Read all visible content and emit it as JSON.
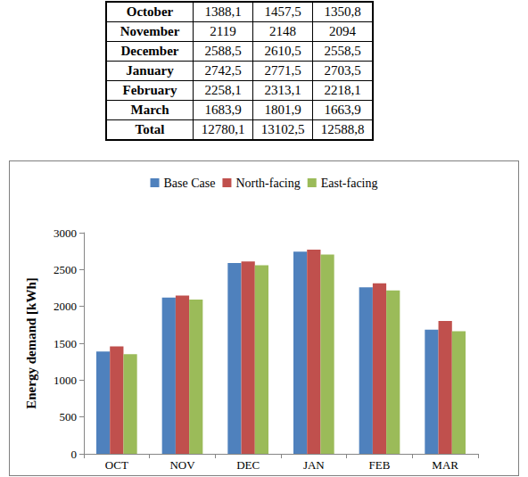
{
  "table": {
    "rows": [
      [
        "October",
        "1388,1",
        "1457,5",
        "1350,8"
      ],
      [
        "November",
        "2119",
        "2148",
        "2094"
      ],
      [
        "December",
        "2588,5",
        "2610,5",
        "2558,5"
      ],
      [
        "January",
        "2742,5",
        "2771,5",
        "2703,5"
      ],
      [
        "February",
        "2258,1",
        "2313,1",
        "2218,1"
      ],
      [
        "March",
        "1683,9",
        "1801,9",
        "1663,9"
      ],
      [
        "Total",
        "12780,1",
        "13102,5",
        "12588,8"
      ]
    ]
  },
  "chart_data": {
    "type": "bar",
    "categories": [
      "OCT",
      "NOV",
      "DEC",
      "JAN",
      "FEB",
      "MAR"
    ],
    "series": [
      {
        "name": "Base Case",
        "color": "#4f81bd",
        "values": [
          1388.1,
          2119,
          2588.5,
          2742.5,
          2258.1,
          1683.9
        ]
      },
      {
        "name": "North-facing",
        "color": "#c0504d",
        "values": [
          1457.5,
          2148,
          2610.5,
          2771.5,
          2313.1,
          1801.9
        ]
      },
      {
        "name": "East-facing",
        "color": "#9bbb59",
        "values": [
          1350.8,
          2094,
          2558.5,
          2703.5,
          2218.1,
          1663.9
        ]
      }
    ],
    "ylabel": "Energy demand [kWh]",
    "ylim": [
      0,
      3000
    ],
    "yticks": [
      0,
      500,
      1000,
      1500,
      2000,
      2500,
      3000
    ],
    "grid": false,
    "legend": "top"
  }
}
